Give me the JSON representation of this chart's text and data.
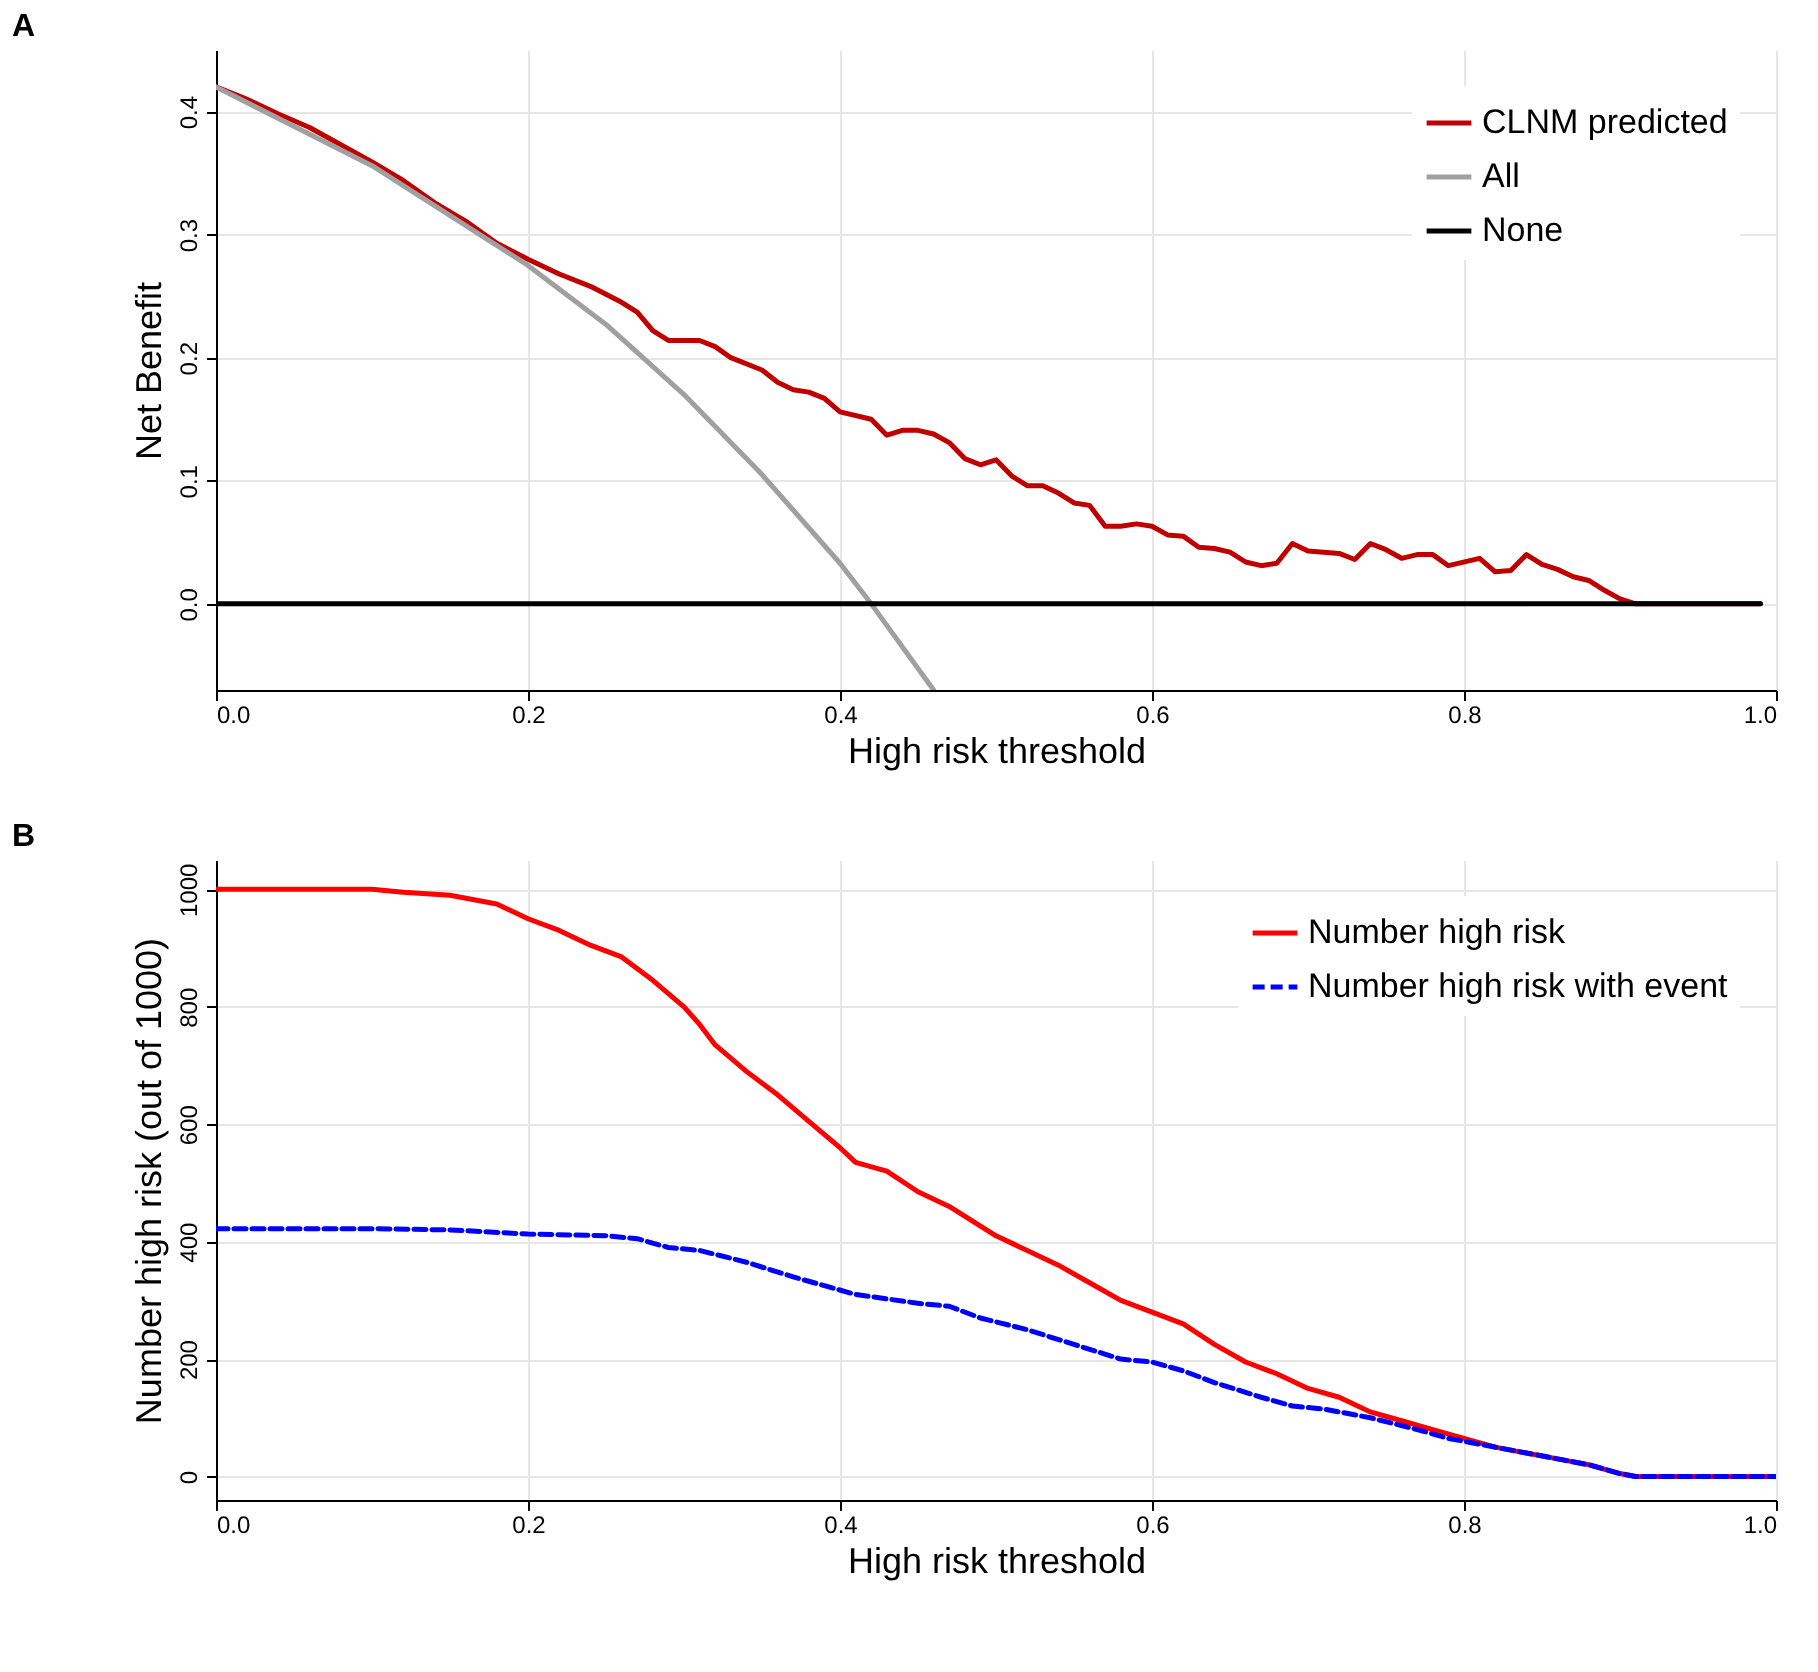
{
  "chart_data": [
    {
      "type": "line",
      "title": "A",
      "xlabel": "High risk threshold",
      "ylabel": "Net Benefit",
      "xlim": [
        0,
        1
      ],
      "ylim": [
        -0.07,
        0.45
      ],
      "xticks": [
        {
          "value": 0,
          "label": "0.0"
        },
        {
          "value": 0.2,
          "label": "0.2"
        },
        {
          "value": 0.4,
          "label": "0.4"
        },
        {
          "value": 0.6,
          "label": "0.6"
        },
        {
          "value": 0.8,
          "label": "0.8"
        },
        {
          "value": 1,
          "label": "1.0"
        }
      ],
      "yticks": [
        {
          "value": 0,
          "label": "0.0"
        },
        {
          "value": 0.1,
          "label": "0.1"
        },
        {
          "value": 0.2,
          "label": "0.2"
        },
        {
          "value": 0.3,
          "label": "0.3"
        },
        {
          "value": 0.4,
          "label": "0.4"
        }
      ],
      "grid": true,
      "legend": "top right",
      "line_style": "solid",
      "series": [
        {
          "name": "CLNM predicted",
          "color": "#c00000",
          "x": [
            0,
            0.02,
            0.04,
            0.06,
            0.08,
            0.1,
            0.12,
            0.14,
            0.16,
            0.18,
            0.2,
            0.22,
            0.24,
            0.26,
            0.27,
            0.28,
            0.29,
            0.31,
            0.32,
            0.33,
            0.35,
            0.36,
            0.37,
            0.38,
            0.39,
            0.4,
            0.42,
            0.43,
            0.44,
            0.45,
            0.46,
            0.47,
            0.48,
            0.49,
            0.5,
            0.51,
            0.52,
            0.53,
            0.54,
            0.55,
            0.56,
            0.57,
            0.58,
            0.59,
            0.6,
            0.61,
            0.62,
            0.63,
            0.64,
            0.65,
            0.66,
            0.67,
            0.68,
            0.69,
            0.7,
            0.72,
            0.73,
            0.74,
            0.75,
            0.76,
            0.77,
            0.78,
            0.79,
            0.81,
            0.82,
            0.83,
            0.84,
            0.85,
            0.86,
            0.87,
            0.88,
            0.89,
            0.9,
            0.91,
            0.99
          ],
          "values": [
            0.42,
            0.41,
            0.398,
            0.387,
            0.373,
            0.359,
            0.344,
            0.326,
            0.311,
            0.293,
            0.28,
            0.268,
            0.258,
            0.245,
            0.237,
            0.222,
            0.214,
            0.214,
            0.209,
            0.2,
            0.19,
            0.18,
            0.174,
            0.172,
            0.167,
            0.156,
            0.15,
            0.137,
            0.141,
            0.141,
            0.138,
            0.131,
            0.118,
            0.113,
            0.117,
            0.104,
            0.096,
            0.096,
            0.09,
            0.082,
            0.08,
            0.063,
            0.063,
            0.065,
            0.063,
            0.056,
            0.055,
            0.046,
            0.045,
            0.042,
            0.034,
            0.031,
            0.033,
            0.049,
            0.043,
            0.041,
            0.036,
            0.049,
            0.044,
            0.037,
            0.04,
            0.04,
            0.031,
            0.037,
            0.026,
            0.027,
            0.04,
            0.032,
            0.028,
            0.022,
            0.019,
            0.011,
            0.004,
            0,
            0
          ]
        },
        {
          "name": "All",
          "color": "#a0a0a0",
          "x": [
            0,
            0.1,
            0.2,
            0.25,
            0.3,
            0.35,
            0.4,
            0.42,
            0.46
          ],
          "values": [
            0.42,
            0.356,
            0.275,
            0.227,
            0.17,
            0.105,
            0.033,
            0,
            -0.07
          ]
        },
        {
          "name": "None",
          "color": "#000000",
          "x": [
            0,
            0.99
          ],
          "values": [
            0,
            0
          ]
        }
      ]
    },
    {
      "type": "line",
      "title": "B",
      "xlabel": "High risk threshold",
      "ylabel": "Number high risk (out of 1000)",
      "xlim": [
        0,
        1
      ],
      "ylim": [
        -40,
        1050
      ],
      "xticks": [
        {
          "value": 0,
          "label": "0.0"
        },
        {
          "value": 0.2,
          "label": "0.2"
        },
        {
          "value": 0.4,
          "label": "0.4"
        },
        {
          "value": 0.6,
          "label": "0.6"
        },
        {
          "value": 0.8,
          "label": "0.8"
        },
        {
          "value": 1,
          "label": "1.0"
        }
      ],
      "yticks": [
        0,
        200,
        400,
        600,
        800,
        1000
      ],
      "grid": true,
      "legend": "top right",
      "series": [
        {
          "name": "Number high risk",
          "color": "#ff0000",
          "line_style": "solid",
          "x": [
            0,
            0.1,
            0.12,
            0.15,
            0.18,
            0.2,
            0.22,
            0.24,
            0.26,
            0.28,
            0.3,
            0.31,
            0.32,
            0.34,
            0.36,
            0.38,
            0.4,
            0.41,
            0.43,
            0.45,
            0.47,
            0.5,
            0.52,
            0.54,
            0.56,
            0.58,
            0.6,
            0.62,
            0.64,
            0.66,
            0.68,
            0.7,
            0.72,
            0.74,
            0.76,
            0.78,
            0.8,
            0.82,
            0.84,
            0.86,
            0.88,
            0.9,
            0.91,
            1
          ],
          "values": [
            1000,
            1000,
            995,
            990,
            975,
            950,
            930,
            905,
            885,
            845,
            800,
            770,
            735,
            690,
            650,
            605,
            560,
            535,
            520,
            485,
            460,
            410,
            385,
            360,
            330,
            300,
            280,
            260,
            225,
            195,
            175,
            150,
            135,
            110,
            95,
            80,
            65,
            50,
            40,
            30,
            20,
            5,
            0,
            0
          ]
        },
        {
          "name": "Number high risk with event",
          "color": "#0000ff",
          "line_style": "dashed",
          "x": [
            0,
            0.1,
            0.15,
            0.2,
            0.25,
            0.27,
            0.29,
            0.31,
            0.34,
            0.37,
            0.39,
            0.41,
            0.45,
            0.47,
            0.49,
            0.52,
            0.55,
            0.58,
            0.6,
            0.62,
            0.64,
            0.67,
            0.69,
            0.71,
            0.74,
            0.77,
            0.79,
            0.81,
            0.84,
            0.86,
            0.88,
            0.9,
            0.91,
            1
          ],
          "values": [
            422,
            422,
            420,
            413,
            410,
            405,
            390,
            385,
            365,
            340,
            325,
            310,
            295,
            290,
            270,
            250,
            225,
            200,
            195,
            180,
            160,
            135,
            120,
            115,
            100,
            80,
            65,
            55,
            40,
            30,
            20,
            5,
            0,
            0
          ]
        }
      ]
    }
  ]
}
